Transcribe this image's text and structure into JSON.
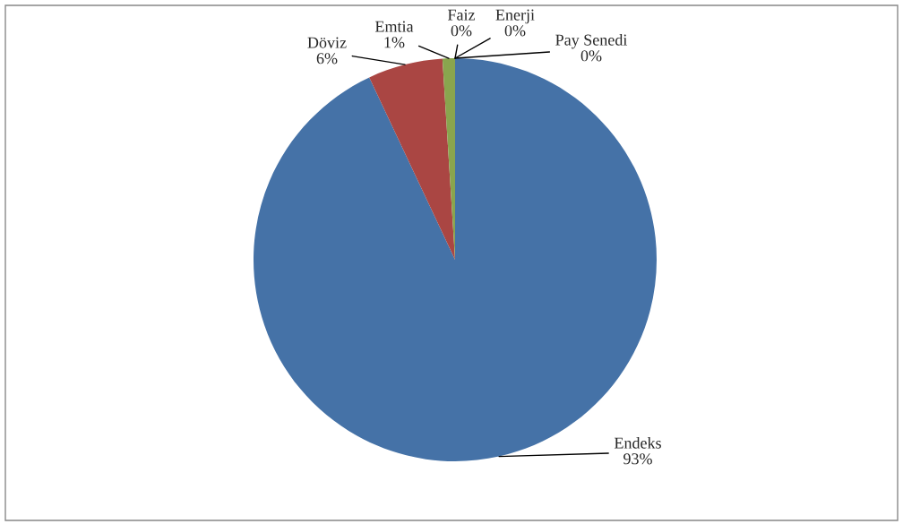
{
  "chart_data": {
    "type": "pie",
    "categories": [
      "Endeks",
      "Döviz",
      "Emtia",
      "Faiz",
      "Enerji",
      "Pay Senedi"
    ],
    "values": [
      93,
      6,
      1,
      0,
      0,
      0
    ],
    "value_labels": [
      "93%",
      "6%",
      "1%",
      "0%",
      "0%",
      "0%"
    ],
    "colors": [
      "#4572a7",
      "#aa4643",
      "#89a54e",
      "#71588f",
      "#4198af",
      "#db843d"
    ]
  }
}
